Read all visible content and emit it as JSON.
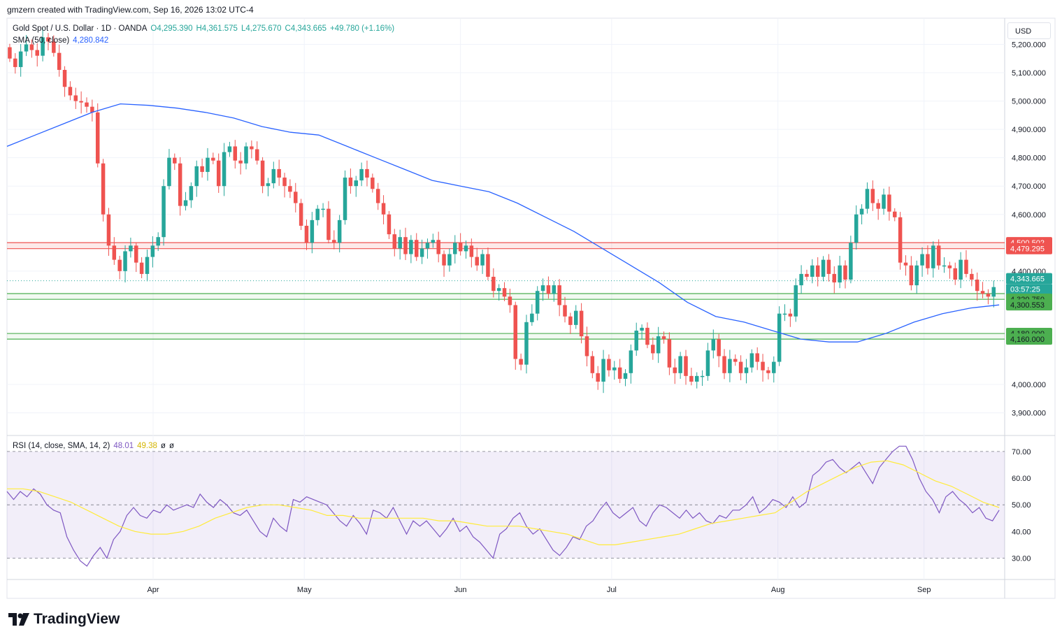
{
  "header": {
    "caption": "gmzern created with TradingView.com, Sep 16, 2026 13:02 UTC-4"
  },
  "legend": {
    "symbol": "Gold Spot / U.S. Dollar · 1D · OANDA",
    "open": "O4,295.390",
    "high": "H4,361.575",
    "low": "L4,275.670",
    "close": "C4,343.665",
    "change": "+49.780 (+1.16%)",
    "sma_label": "SMA (50, close)",
    "sma_value": "4,280.842",
    "rsi_label": "RSI (14, close, SMA, 14, 2)",
    "rsi_value": "48.01",
    "rsi_ma_value": "49.38",
    "rsi_extra": "ø",
    "rsi_extra2": "ø"
  },
  "currency": "USD",
  "brand": "TradingView",
  "colors": {
    "up": "#26a69a",
    "down": "#ef5350",
    "sma": "#2962ff",
    "rsi": "#7e57c2",
    "rsi_ma": "#ffeb3b",
    "resistance_zone": "#ef5350",
    "support_zone": "#4caf50"
  },
  "chart_data": [
    {
      "type": "candlestick",
      "y_axis_ticks": [
        "5,200.000",
        "5,100.000",
        "5,000.000",
        "4,900.000",
        "4,800.000",
        "4,700.000",
        "4,600.000",
        "4,400.000",
        "4,000.000",
        "3,900.000"
      ],
      "y_tick_values": [
        5200,
        5100,
        5000,
        4900,
        4800,
        4700,
        4600,
        4400,
        4000,
        3900
      ],
      "ylim": [
        3820,
        5290
      ],
      "x_axis_labels": [
        "Apr",
        "May",
        "Jun",
        "Jul",
        "Aug",
        "Sep"
      ],
      "x_label_dates": [
        "2026-04-01",
        "2026-05-01",
        "2026-06-01",
        "2026-07-01",
        "2026-08-03",
        "2026-09-01"
      ],
      "x_range_dates": [
        "2026-03-03",
        "2026-09-17"
      ],
      "grid": true,
      "candle_closes": [
        5150,
        5120,
        5175,
        5200,
        5180,
        5160,
        5225,
        5210,
        5170,
        5110,
        5050,
        5020,
        5000,
        4995,
        4980,
        4960,
        4780,
        4600,
        4490,
        4440,
        4400,
        4470,
        4490,
        4430,
        4390,
        4450,
        4490,
        4520,
        4700,
        4800,
        4780,
        4630,
        4650,
        4700,
        4770,
        4750,
        4800,
        4790,
        4700,
        4820,
        4840,
        4790,
        4780,
        4840,
        4830,
        4790,
        4700,
        4710,
        4760,
        4730,
        4700,
        4680,
        4640,
        4560,
        4500,
        4580,
        4620,
        4620,
        4510,
        4500,
        4580,
        4730,
        4700,
        4720,
        4760,
        4730,
        4690,
        4640,
        4600,
        4530,
        4480,
        4520,
        4460,
        4510,
        4450,
        4480,
        4500,
        4510,
        4460,
        4420,
        4460,
        4500,
        4470,
        4490,
        4450,
        4420,
        4460,
        4380,
        4330,
        4340,
        4310,
        4280,
        4090,
        4070,
        4220,
        4250,
        4330,
        4350,
        4320,
        4350,
        4280,
        4240,
        4210,
        4260,
        4170,
        4100,
        4040,
        4010,
        4090,
        4050,
        4060,
        4020,
        4040,
        4120,
        4190,
        4200,
        4140,
        4110,
        4170,
        4160,
        4060,
        4040,
        4100,
        4030,
        4010,
        4030,
        4030,
        4120,
        4160,
        4100,
        4040,
        4090,
        4080,
        4040,
        4060,
        4110,
        4080,
        4050,
        4040,
        4080,
        4250,
        4250,
        4240,
        4350,
        4390,
        4380,
        4420,
        4380,
        4440,
        4390,
        4360,
        4420,
        4370,
        4500,
        4600,
        4620,
        4690,
        4640,
        4620,
        4670,
        4610,
        4590,
        4430,
        4420,
        4350,
        4420,
        4460,
        4410,
        4490,
        4420,
        4420,
        4410,
        4370,
        4440,
        4390,
        4370,
        4330,
        4320,
        4310,
        4343.665
      ],
      "current_price": 4343.665,
      "countdown": "03:57:25",
      "sma50": [
        4840,
        4880,
        4920,
        4960,
        4990,
        4985,
        4975,
        4960,
        4940,
        4910,
        4890,
        4880,
        4840,
        4800,
        4760,
        4720,
        4700,
        4680,
        4640,
        4590,
        4540,
        4480,
        4420,
        4360,
        4290,
        4240,
        4220,
        4190,
        4160,
        4150,
        4150,
        4180,
        4220,
        4250,
        4270,
        4280.842
      ],
      "markers": {
        "labels": [
          "4,500.502",
          "4,479.295",
          "4,343.665",
          "4,320.750",
          "4,300.553",
          "4,180.000",
          "4,160.000"
        ],
        "values": [
          4500.502,
          4479.295,
          4343.665,
          4320.75,
          4300.553,
          4180,
          4160
        ]
      },
      "zones": [
        {
          "from": 4479.295,
          "to": 4500.502
        },
        {
          "from": 4300.553,
          "to": 4320.75
        },
        {
          "from": 4160,
          "to": 4180
        }
      ]
    },
    {
      "type": "line",
      "series": [
        {
          "name": "RSI",
          "values": [
            55,
            52,
            55,
            53,
            56,
            54,
            50,
            48,
            47,
            38,
            33,
            29,
            27,
            31,
            34,
            30,
            37,
            40,
            46,
            49,
            46,
            45,
            48,
            47,
            50,
            48,
            49,
            50,
            49,
            54,
            51,
            49,
            52,
            50,
            47,
            46,
            48,
            44,
            40,
            38,
            45,
            42,
            40,
            52,
            51,
            53,
            52,
            51,
            50,
            47,
            44,
            42,
            46,
            43,
            39,
            48,
            47,
            45,
            49,
            44,
            39,
            44,
            42,
            44,
            41,
            38,
            41,
            45,
            40,
            42,
            38,
            36,
            33,
            30,
            39,
            41,
            45,
            47,
            42,
            39,
            41,
            37,
            33,
            31,
            34,
            38,
            37,
            42,
            44,
            48,
            51,
            47,
            45,
            47,
            49,
            44,
            42,
            47,
            50,
            49,
            47,
            45,
            48,
            45,
            47,
            44,
            43,
            46,
            45,
            48,
            48,
            50,
            53,
            47,
            49,
            52,
            51,
            49,
            53,
            49,
            51,
            61,
            63,
            66,
            67,
            64,
            62,
            64,
            66,
            62,
            58,
            64,
            67,
            70,
            72,
            72,
            67,
            60,
            55,
            52,
            47,
            53,
            55,
            52,
            50,
            47,
            49,
            45,
            44,
            48
          ]
        },
        {
          "name": "RSI-based MA",
          "values": [
            56,
            56,
            55,
            53,
            51,
            48,
            45,
            42,
            40,
            39,
            39,
            40,
            42,
            45,
            47,
            49,
            50,
            50,
            49,
            48,
            46,
            46,
            45,
            45,
            45,
            45,
            45,
            44,
            44,
            43,
            42,
            42,
            42,
            41,
            40,
            39,
            37,
            35,
            35,
            36,
            37,
            38,
            39,
            41,
            43,
            44,
            45,
            46,
            47,
            51,
            55,
            58,
            61,
            64,
            66,
            66.5,
            65,
            62,
            59,
            57,
            54,
            51,
            49
          ]
        }
      ],
      "ylim": [
        22,
        76
      ],
      "y_axis_ticks": [
        "70.00",
        "60.00",
        "50.00",
        "40.00",
        "30.00"
      ],
      "y_tick_values": [
        70,
        60,
        50,
        40,
        30
      ],
      "band": [
        30,
        70
      ]
    }
  ]
}
